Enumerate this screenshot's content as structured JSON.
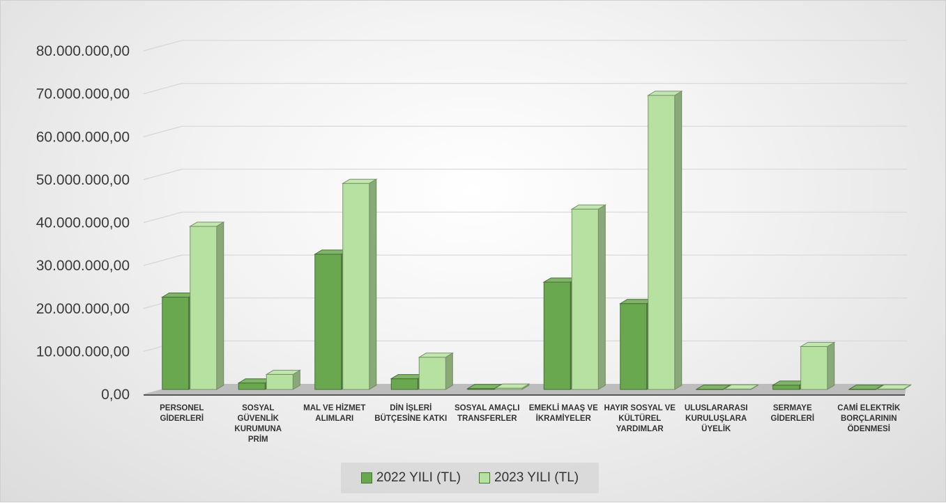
{
  "chart_data": {
    "type": "bar",
    "title": "",
    "xlabel": "",
    "ylabel": "",
    "ylim": [
      0,
      80000000
    ],
    "y_ticks": [
      "0,00",
      "10.000.000,00",
      "20.000.000,00",
      "30.000.000,00",
      "40.000.000,00",
      "50.000.000,00",
      "60.000.000,00",
      "70.000.000,00",
      "80.000.000,00"
    ],
    "y_tick_values": [
      0,
      10000000,
      20000000,
      30000000,
      40000000,
      50000000,
      60000000,
      70000000,
      80000000
    ],
    "categories": [
      "PERSONEL GİDERLERİ",
      "SOSYAL GÜVENLİK KURUMUNA PRİM",
      "MAL VE HİZMET ALIMLARI",
      "DİN İŞLERİ BÜTÇESİNE KATKI",
      "SOSYAL AMAÇLI TRANSFERLER",
      "EMEKLİ MAAŞ VE İKRAMİYELER",
      "HAYIR SOSYAL VE KÜLTÜREL YARDIMLAR",
      "ULUSLARARASI KURULUŞLARA ÜYELİK",
      "SERMAYE GİDERLERİ",
      "CAMİ ELEKTRİK BORÇLARININ ÖDENMESİ"
    ],
    "category_lines": [
      [
        "PERSONEL",
        "GİDERLERİ"
      ],
      [
        "SOSYAL",
        "GÜVENLİK",
        "KURUMUNA",
        "PRİM"
      ],
      [
        "MAL VE HİZMET",
        "ALIMLARI"
      ],
      [
        "DİN İŞLERİ",
        "BÜTÇESİNE KATKI"
      ],
      [
        "SOSYAL AMAÇLI",
        "TRANSFERLER"
      ],
      [
        "EMEKLİ MAAŞ VE",
        "İKRAMİYELER"
      ],
      [
        "HAYIR SOSYAL VE",
        "KÜLTÜREL",
        "YARDIMLAR"
      ],
      [
        "ULUSLARARASI",
        "KURULUŞLARA",
        "ÜYELİK"
      ],
      [
        "SERMAYE",
        "GİDERLERİ"
      ],
      [
        "CAMİ ELEKTRİK",
        "BORÇLARININ",
        "ÖDENMESİ"
      ]
    ],
    "series": [
      {
        "name": "2022 YILI (TL)",
        "color": "#6aa84f",
        "values": [
          21500000,
          1500000,
          31500000,
          2500000,
          200000,
          25000000,
          20000000,
          50000,
          1000000,
          50000
        ]
      },
      {
        "name": "2023 YILI (TL)",
        "color": "#b7e1a1",
        "values": [
          38000000,
          3500000,
          48000000,
          7500000,
          300000,
          42000000,
          68500000,
          100000,
          10000000,
          100000
        ]
      }
    ],
    "grid": true,
    "legend_position": "bottom"
  }
}
